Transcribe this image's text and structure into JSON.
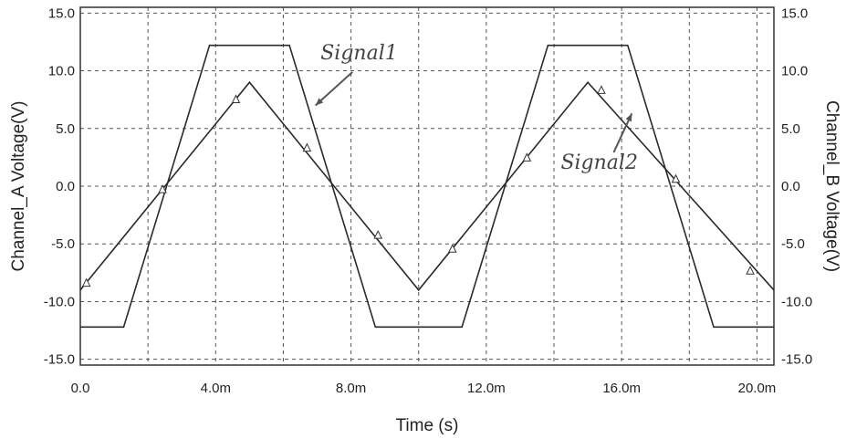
{
  "chart_data": {
    "type": "line",
    "title": "",
    "xlabel": "Time (s)",
    "ylabel_left": "Channel_A Voltage(V)",
    "ylabel_right": "Channel_B Voltage(V)",
    "xlim": [
      0,
      0.0205
    ],
    "ylim": [
      -15.5,
      15.5
    ],
    "grid": true,
    "x_ticks": [
      0,
      0.002,
      0.004,
      0.006,
      0.008,
      0.01,
      0.012,
      0.014,
      0.016,
      0.018,
      0.02
    ],
    "x_tick_labels": [
      {
        "x": 0,
        "label": "0.0"
      },
      {
        "x": 0.004,
        "label": "4.0m"
      },
      {
        "x": 0.008,
        "label": "8.0m"
      },
      {
        "x": 0.012,
        "label": "12.0m"
      },
      {
        "x": 0.016,
        "label": "16.0m"
      },
      {
        "x": 0.02,
        "label": "20.0m"
      }
    ],
    "y_ticks": [
      {
        "y": 15,
        "label": "15.0"
      },
      {
        "y": 10,
        "label": "10.0"
      },
      {
        "y": 5,
        "label": "5.0"
      },
      {
        "y": 0,
        "label": "0.0"
      },
      {
        "y": -5,
        "label": "-5.0"
      },
      {
        "y": -10,
        "label": "-10.0"
      },
      {
        "y": -15,
        "label": "-15.0"
      }
    ],
    "series": [
      {
        "name": "Signal 1",
        "axis": "left",
        "x": [
          0,
          0.00128,
          0.00382,
          0.00618,
          0.00872,
          0.01128,
          0.01382,
          0.01618,
          0.01872,
          0.0205
        ],
        "y": [
          -12.2,
          -12.2,
          12.2,
          12.2,
          -12.2,
          -12.2,
          12.2,
          12.2,
          -12.2,
          -12.2
        ]
      },
      {
        "name": "Signal 2",
        "axis": "right",
        "x": [
          0,
          0.005,
          0.01,
          0.015,
          0.0205
        ],
        "y": [
          -9,
          9,
          -9,
          9,
          -9
        ]
      }
    ],
    "markers": [
      {
        "x": 0.00018,
        "y": -8.35
      },
      {
        "x": 0.00243,
        "y": -0.25
      },
      {
        "x": 0.0046,
        "y": 7.55
      },
      {
        "x": 0.0067,
        "y": 3.35
      },
      {
        "x": 0.0088,
        "y": -4.2
      },
      {
        "x": 0.011,
        "y": -5.4
      },
      {
        "x": 0.0132,
        "y": 2.5
      },
      {
        "x": 0.0154,
        "y": 8.35
      },
      {
        "x": 0.0176,
        "y": 0.65
      },
      {
        "x": 0.0198,
        "y": -7.3
      }
    ],
    "annotations": [
      {
        "text": "Signal1",
        "target": "Signal 1",
        "text_x": 0.0071,
        "text_y": 11.0,
        "arrow_to_x": 0.00695,
        "arrow_to_y": 7.0
      },
      {
        "text": "Signal2",
        "target": "Signal 2",
        "text_x": 0.0142,
        "text_y": 1.5,
        "arrow_to_x": 0.0163,
        "arrow_to_y": 6.3
      }
    ]
  }
}
